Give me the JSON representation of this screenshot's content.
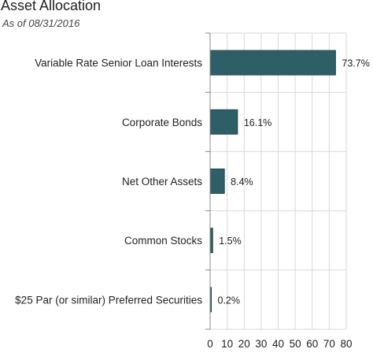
{
  "title": "Asset Allocation",
  "subtitle": "As of 08/31/2016",
  "colors": {
    "bar": "#2f5f66",
    "bar_edge": "#1e4248",
    "grid": "#d9d9d9",
    "axis": "#888888"
  },
  "chart_data": {
    "type": "bar",
    "orientation": "horizontal",
    "title": "Asset Allocation",
    "subtitle": "As of 08/31/2016",
    "categories": [
      "Variable Rate Senior Loan Interests",
      "Corporate Bonds",
      "Net Other Assets",
      "Common Stocks",
      "$25 Par (or similar) Preferred Securities"
    ],
    "values": [
      73.7,
      16.1,
      8.4,
      1.5,
      0.2
    ],
    "value_labels": [
      "73.7%",
      "16.1%",
      "8.4%",
      "1.5%",
      "0.2%"
    ],
    "xlim": [
      0,
      80
    ],
    "xticks": [
      0,
      10,
      20,
      30,
      40,
      50,
      60,
      70,
      80
    ],
    "grid": true,
    "legend": "none"
  }
}
